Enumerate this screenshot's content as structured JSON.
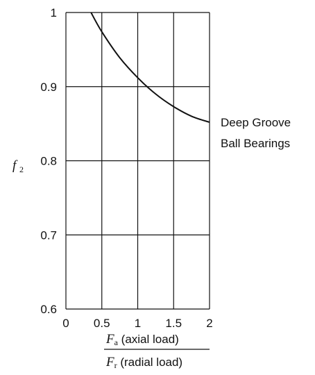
{
  "chart_data": {
    "type": "line",
    "title": "",
    "xlim": [
      0,
      2
    ],
    "ylim": [
      0.6,
      1
    ],
    "x_ticks": [
      "0",
      "0.5",
      "1",
      "1.5",
      "2"
    ],
    "y_ticks": [
      "0.6",
      "0.7",
      "0.8",
      "0.9",
      "1"
    ],
    "grid": true,
    "ylabel": {
      "symbol": "f",
      "subscript": "2"
    },
    "xlabel": {
      "numerator": {
        "symbol": "F",
        "subscript": "a",
        "text": " (axial load)"
      },
      "denominator": {
        "symbol": "F",
        "subscript": "r",
        "text": " (radial load)"
      }
    },
    "series": [
      {
        "name": "Deep Groove Ball Bearings",
        "name_lines": [
          "Deep Groove",
          "Ball Bearings"
        ],
        "x": [
          0.35,
          0.5,
          0.75,
          1.0,
          1.25,
          1.5,
          1.75,
          2.0
        ],
        "y": [
          1.0,
          0.974,
          0.939,
          0.912,
          0.89,
          0.873,
          0.86,
          0.852
        ]
      }
    ]
  }
}
